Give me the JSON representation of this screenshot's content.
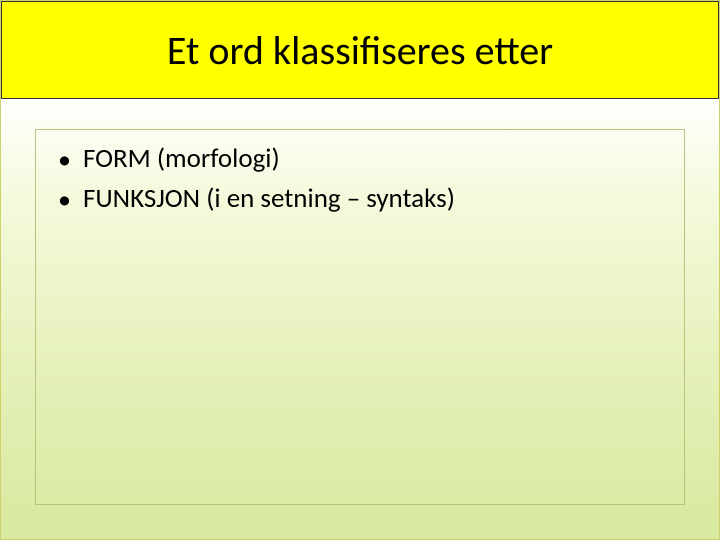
{
  "slide": {
    "title": "Et ord klassifiseres etter",
    "bullets": [
      {
        "text": "FORM (morfologi)"
      },
      {
        "text": "FUNKSJON (i en setning – syntaks)"
      }
    ]
  },
  "style": {
    "title_bg": "#ffff00",
    "title_border": "#333333",
    "title_fontsize": 40,
    "title_color": "#000000",
    "body_gradient_top": "#ffffff",
    "body_gradient_bottom": "#d8e99f",
    "content_border": "#b9c47a",
    "bullet_fontsize": 27,
    "bullet_color": "#000000",
    "bullet_marker": "•",
    "slide_width": 720,
    "slide_height": 540
  }
}
